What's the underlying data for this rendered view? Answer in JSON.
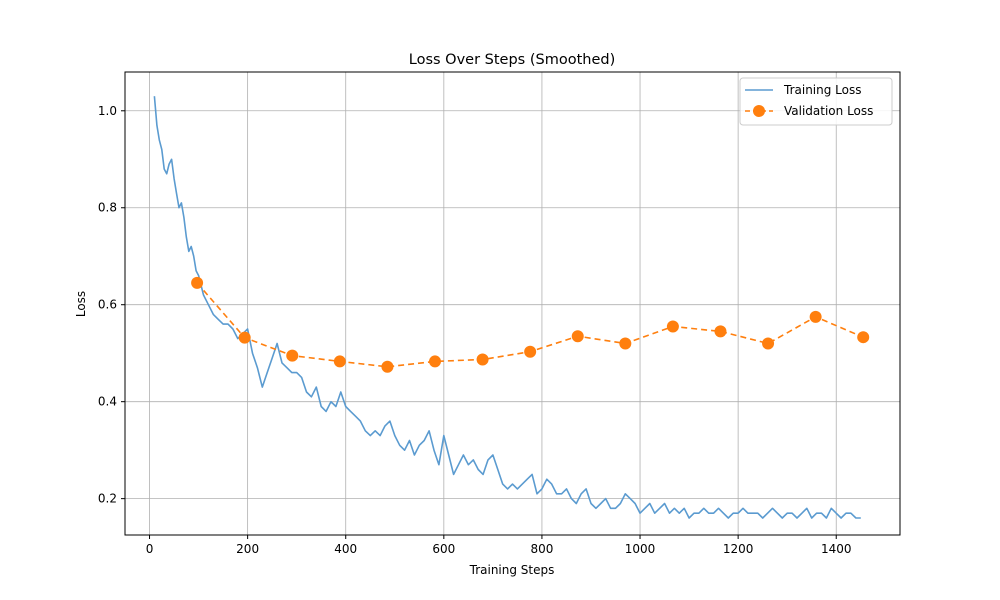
{
  "chart_data": {
    "type": "line",
    "title": "Loss Over Steps (Smoothed)",
    "xlabel": "Training Steps",
    "ylabel": "Loss",
    "xlim": [
      -50,
      1530
    ],
    "ylim": [
      0.125,
      1.08
    ],
    "xticks": [
      0,
      200,
      400,
      600,
      800,
      1000,
      1200,
      1400
    ],
    "yticks": [
      0.2,
      0.4,
      0.6,
      0.8,
      1.0
    ],
    "xtick_labels": [
      "0",
      "200",
      "400",
      "600",
      "800",
      "1000",
      "1200",
      "1400"
    ],
    "ytick_labels": [
      "0.2",
      "0.4",
      "0.6",
      "0.8",
      "1.0"
    ],
    "grid": true,
    "legend_position": "top-right",
    "series": [
      {
        "name": "Training Loss",
        "style": "solid",
        "color": "#5b9bd0",
        "x": [
          10,
          15,
          20,
          25,
          30,
          35,
          40,
          45,
          50,
          55,
          60,
          65,
          70,
          75,
          80,
          85,
          90,
          95,
          100,
          110,
          120,
          130,
          140,
          150,
          160,
          170,
          180,
          190,
          200,
          210,
          220,
          230,
          240,
          250,
          260,
          270,
          280,
          290,
          300,
          310,
          320,
          330,
          340,
          350,
          360,
          370,
          380,
          390,
          400,
          410,
          420,
          430,
          440,
          450,
          460,
          470,
          480,
          490,
          500,
          510,
          520,
          530,
          540,
          550,
          560,
          570,
          580,
          590,
          600,
          610,
          620,
          630,
          640,
          650,
          660,
          670,
          680,
          690,
          700,
          710,
          720,
          730,
          740,
          750,
          760,
          770,
          780,
          790,
          800,
          810,
          820,
          830,
          840,
          850,
          860,
          870,
          880,
          890,
          900,
          910,
          920,
          930,
          940,
          950,
          960,
          970,
          980,
          990,
          1000,
          1010,
          1020,
          1030,
          1040,
          1050,
          1060,
          1070,
          1080,
          1090,
          1100,
          1110,
          1120,
          1130,
          1140,
          1150,
          1160,
          1170,
          1180,
          1190,
          1200,
          1210,
          1220,
          1230,
          1240,
          1250,
          1260,
          1270,
          1280,
          1290,
          1300,
          1310,
          1320,
          1330,
          1340,
          1350,
          1360,
          1370,
          1380,
          1390,
          1400,
          1410,
          1420,
          1430,
          1440,
          1450
        ],
        "y": [
          1.03,
          0.97,
          0.94,
          0.92,
          0.88,
          0.87,
          0.89,
          0.9,
          0.86,
          0.83,
          0.8,
          0.81,
          0.78,
          0.74,
          0.71,
          0.72,
          0.7,
          0.67,
          0.66,
          0.62,
          0.6,
          0.58,
          0.57,
          0.56,
          0.56,
          0.55,
          0.53,
          0.54,
          0.55,
          0.5,
          0.47,
          0.43,
          0.46,
          0.49,
          0.52,
          0.48,
          0.47,
          0.46,
          0.46,
          0.45,
          0.42,
          0.41,
          0.43,
          0.39,
          0.38,
          0.4,
          0.39,
          0.42,
          0.39,
          0.38,
          0.37,
          0.36,
          0.34,
          0.33,
          0.34,
          0.33,
          0.35,
          0.36,
          0.33,
          0.31,
          0.3,
          0.32,
          0.29,
          0.31,
          0.32,
          0.34,
          0.3,
          0.27,
          0.33,
          0.29,
          0.25,
          0.27,
          0.29,
          0.27,
          0.28,
          0.26,
          0.25,
          0.28,
          0.29,
          0.26,
          0.23,
          0.22,
          0.23,
          0.22,
          0.23,
          0.24,
          0.25,
          0.21,
          0.22,
          0.24,
          0.23,
          0.21,
          0.21,
          0.22,
          0.2,
          0.19,
          0.21,
          0.22,
          0.19,
          0.18,
          0.19,
          0.2,
          0.18,
          0.18,
          0.19,
          0.21,
          0.2,
          0.19,
          0.17,
          0.18,
          0.19,
          0.17,
          0.18,
          0.19,
          0.17,
          0.18,
          0.17,
          0.18,
          0.16,
          0.17,
          0.17,
          0.18,
          0.17,
          0.17,
          0.18,
          0.17,
          0.16,
          0.17,
          0.17,
          0.18,
          0.17,
          0.17,
          0.17,
          0.16,
          0.17,
          0.18,
          0.17,
          0.16,
          0.17,
          0.17,
          0.16,
          0.17,
          0.18,
          0.16,
          0.17,
          0.17,
          0.16,
          0.18,
          0.17,
          0.16,
          0.17,
          0.17,
          0.16,
          0.16
        ]
      },
      {
        "name": "Validation Loss",
        "style": "dashed",
        "marker": "circle",
        "color": "#ff7f0e",
        "x": [
          97,
          194,
          291,
          388,
          485,
          582,
          679,
          776,
          873,
          970,
          1067,
          1164,
          1261,
          1358,
          1455
        ],
        "y": [
          0.645,
          0.532,
          0.495,
          0.483,
          0.472,
          0.483,
          0.487,
          0.503,
          0.535,
          0.52,
          0.555,
          0.545,
          0.52,
          0.575,
          0.533
        ]
      }
    ]
  }
}
